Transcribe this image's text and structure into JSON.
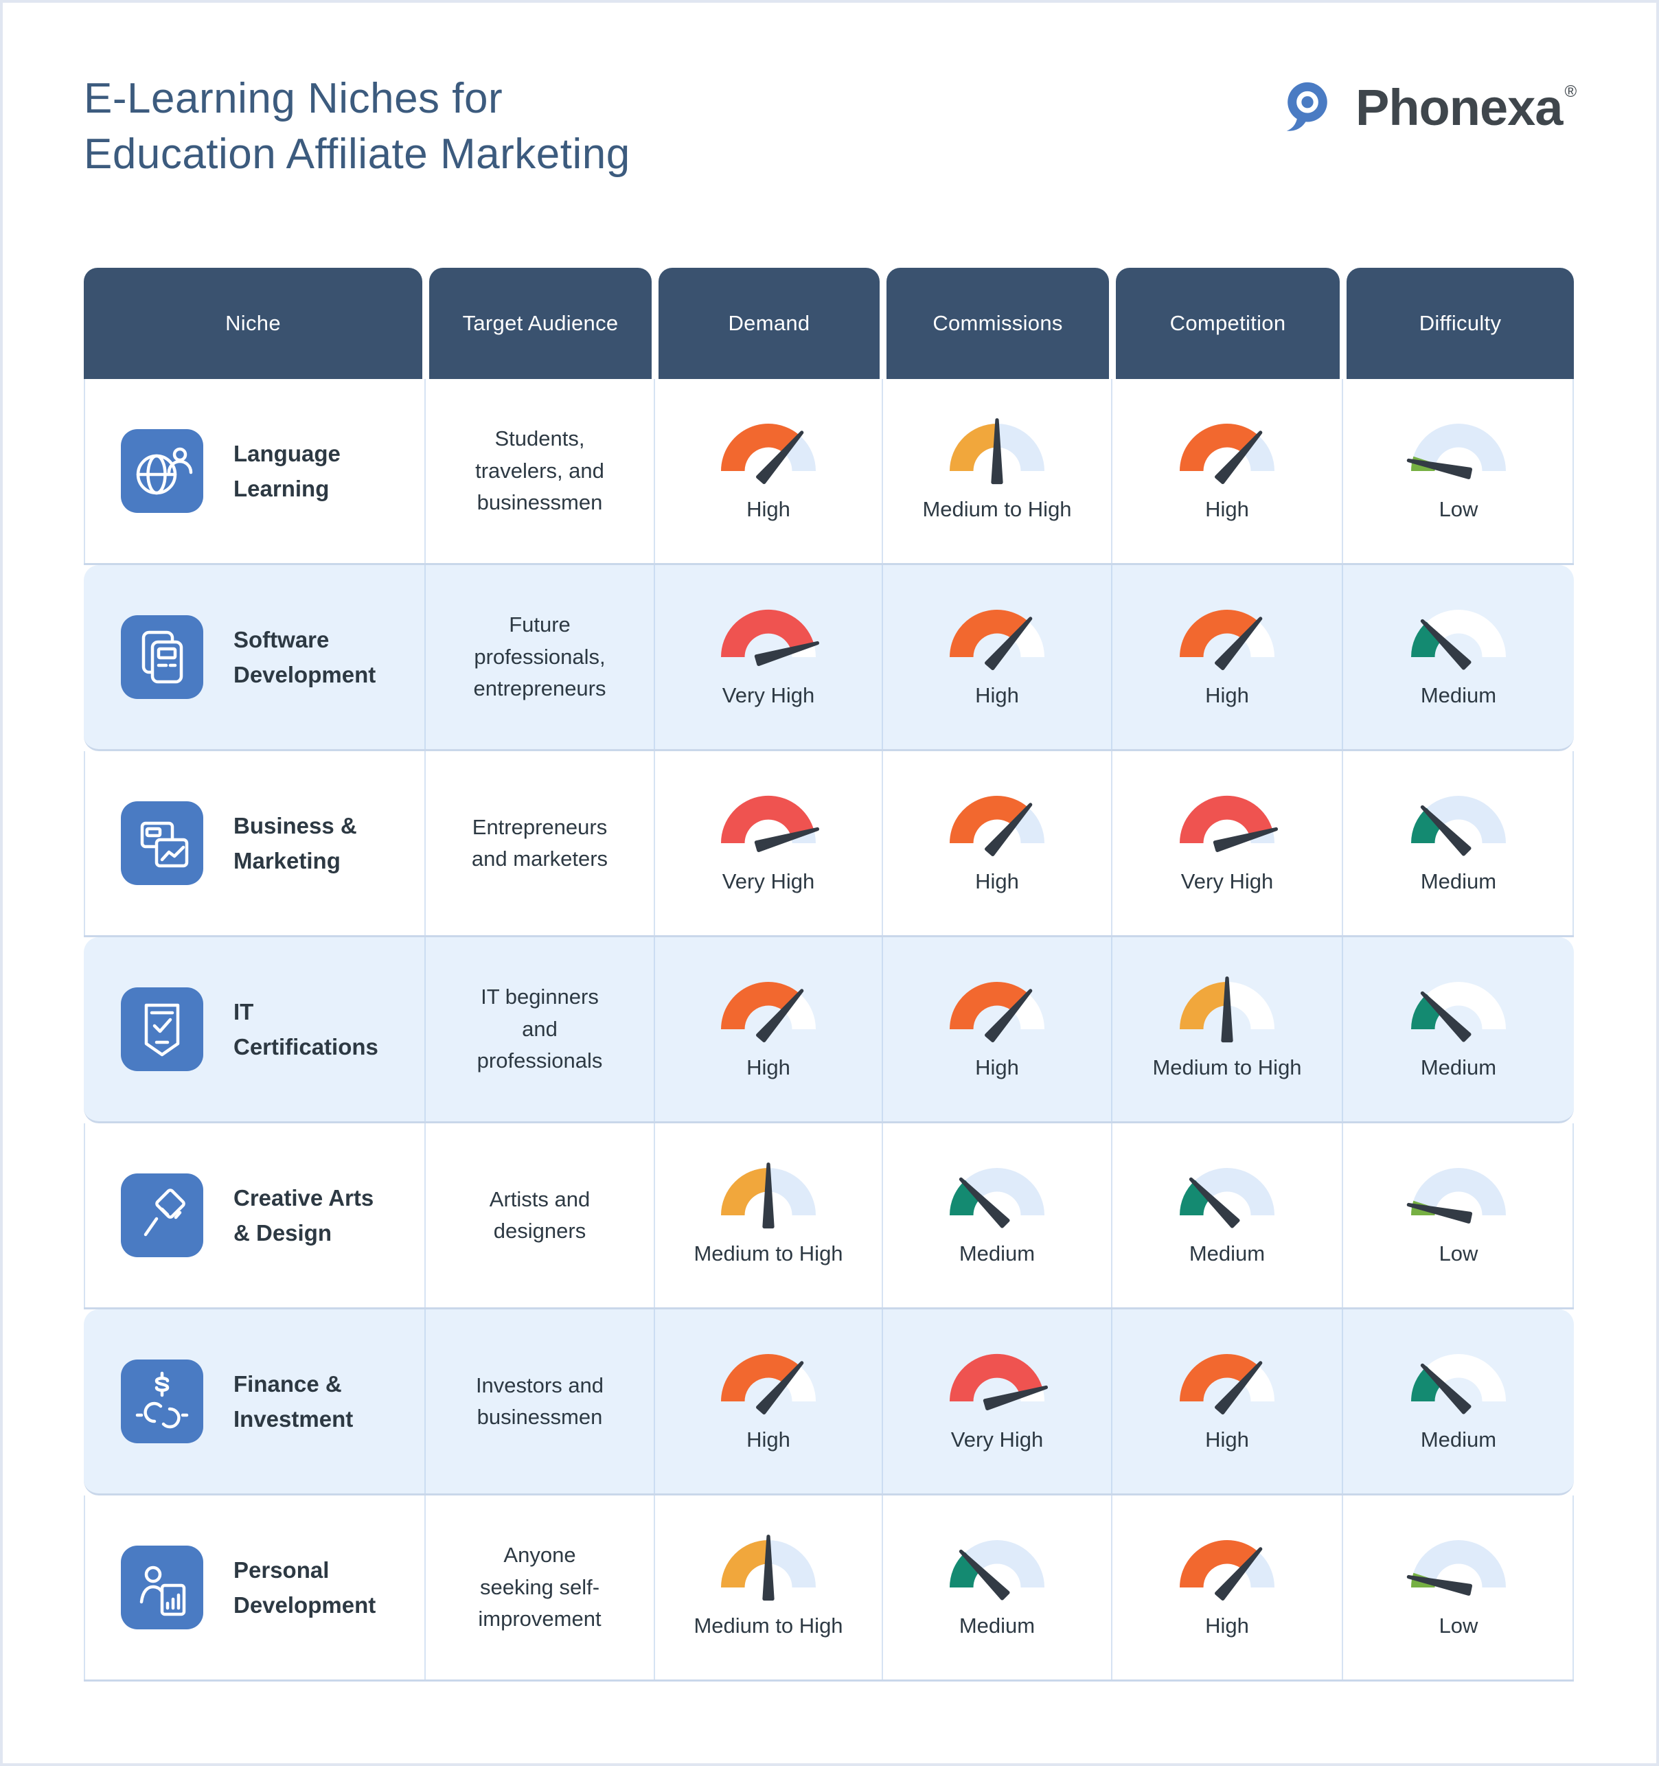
{
  "page": {
    "title_line1": "E-Learning Niches for",
    "title_line2": "Education Affiliate Marketing"
  },
  "logo": {
    "name": "Phonexa",
    "registered_mark": "®",
    "brand_blue": "#4A7BC3",
    "text_color": "#3F464C"
  },
  "colors": {
    "title_text": "#3C5B7E",
    "header_bg": "#3A526F",
    "header_text": "#FFFFFF",
    "body_text": "#2D3943",
    "niche_icon_bg": "#4A7BC3",
    "row_stripe": "#E7F1FC",
    "grid_line": "#D6E3F3",
    "row_separator": "#C9D7EA",
    "gauge_track": "#DFEBFA",
    "gauge_track_on_stripe": "#FFFFFF",
    "needle": "#333B45"
  },
  "gauge_levels": {
    "Low": {
      "color": "#76B043",
      "fill_end_deg": 162,
      "needle_deg": 168
    },
    "Medium": {
      "color": "#148A71",
      "fill_end_deg": 132,
      "needle_deg": 135
    },
    "Medium to High": {
      "color": "#F1A73C",
      "fill_end_deg": 90,
      "needle_deg": 90
    },
    "High": {
      "color": "#F2682F",
      "fill_end_deg": 47,
      "needle_deg": 49
    },
    "Very High": {
      "color": "#EF5350",
      "fill_end_deg": 14,
      "needle_deg": 16
    }
  },
  "table": {
    "columns": [
      "Niche",
      "Target Audience",
      "Demand",
      "Commissions",
      "Competition",
      "Difficulty"
    ],
    "rows": [
      {
        "niche": "Language\nLearning",
        "icon": "globe-user-icon",
        "audience": "Students,\ntravelers, and\nbusinessmen",
        "demand": "High",
        "commissions": "Medium to High",
        "competition": "High",
        "difficulty": "Low"
      },
      {
        "niche": "Software\nDevelopment",
        "icon": "app-windows-icon",
        "audience": "Future\nprofessionals,\nentrepreneurs",
        "demand": "Very High",
        "commissions": "High",
        "competition": "High",
        "difficulty": "Medium"
      },
      {
        "niche": "Business &\nMarketing",
        "icon": "docs-chart-icon",
        "audience": "Entrepreneurs\nand marketers",
        "demand": "Very High",
        "commissions": "High",
        "competition": "Very High",
        "difficulty": "Medium"
      },
      {
        "niche": "IT\nCertifications",
        "icon": "shield-check-icon",
        "audience": "IT beginners\nand\nprofessionals",
        "demand": "High",
        "commissions": "High",
        "competition": "Medium to High",
        "difficulty": "Medium"
      },
      {
        "niche": "Creative Arts\n& Design",
        "icon": "paintbrush-icon",
        "audience": "Artists and\ndesigners",
        "demand": "Medium to High",
        "commissions": "Medium",
        "competition": "Medium",
        "difficulty": "Low"
      },
      {
        "niche": "Finance &\nInvestment",
        "icon": "dollar-coins-icon",
        "audience": "Investors and\nbusinessmen",
        "demand": "High",
        "commissions": "Very High",
        "competition": "High",
        "difficulty": "Medium"
      },
      {
        "niche": "Personal\nDevelopment",
        "icon": "person-chart-icon",
        "audience": "Anyone\nseeking self-\nimprovement",
        "demand": "Medium to High",
        "commissions": "Medium",
        "competition": "High",
        "difficulty": "Low"
      }
    ]
  },
  "chart_data": {
    "type": "table",
    "title": "E-Learning Niches for Education Affiliate Marketing",
    "columns": [
      "Niche",
      "Target Audience",
      "Demand",
      "Commissions",
      "Competition",
      "Difficulty"
    ],
    "rows": [
      [
        "Language Learning",
        "Students, travelers, and businessmen",
        "High",
        "Medium to High",
        "High",
        "Low"
      ],
      [
        "Software Development",
        "Future professionals, entrepreneurs",
        "Very High",
        "High",
        "High",
        "Medium"
      ],
      [
        "Business & Marketing",
        "Entrepreneurs and marketers",
        "Very High",
        "High",
        "Very High",
        "Medium"
      ],
      [
        "IT Certifications",
        "IT beginners and professionals",
        "High",
        "High",
        "Medium to High",
        "Medium"
      ],
      [
        "Creative Arts & Design",
        "Artists and designers",
        "Medium to High",
        "Medium",
        "Medium",
        "Low"
      ],
      [
        "Finance & Investment",
        "Investors and businessmen",
        "High",
        "Very High",
        "High",
        "Medium"
      ],
      [
        "Personal Development",
        "Anyone seeking self-improvement",
        "Medium to High",
        "Medium",
        "High",
        "Low"
      ]
    ],
    "legend": {
      "gauge_scale_order": [
        "Low",
        "Medium",
        "Medium to High",
        "High",
        "Very High"
      ]
    }
  }
}
